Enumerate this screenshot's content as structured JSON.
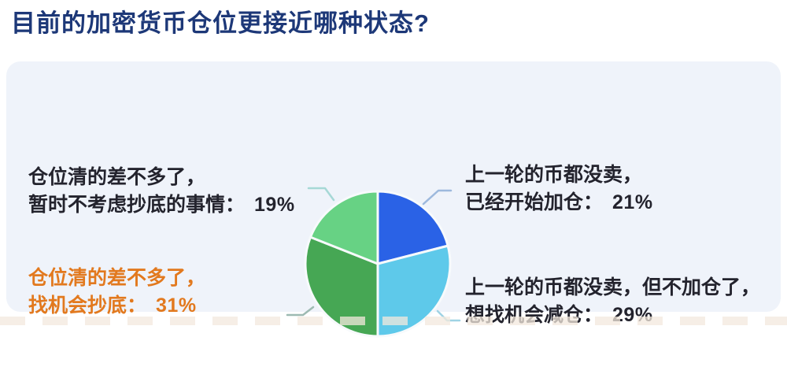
{
  "header": {
    "title": "目前的加密货币仓位更接近哪种状态?"
  },
  "chart_data": {
    "type": "pie",
    "title": "目前的加密货币仓位更接近哪种状态?",
    "start_angle_deg": 0,
    "direction": "clockwise",
    "donut": false,
    "legend_position": "none",
    "slice_gap_color": "#f7fafc",
    "slices": [
      {
        "label": "上一轮的币都没卖，已经开始加仓",
        "value_pct": 21,
        "color": "#2a62e6"
      },
      {
        "label": "上一轮的币都没卖，但不加仓了，想找机会减仓",
        "value_pct": 29,
        "color": "#5ec9ea"
      },
      {
        "label": "仓位清的差不多了，找机会抄底",
        "value_pct": 31,
        "color": "#46a754"
      },
      {
        "label": "仓位清的差不多了，暂时不考虑抄底的事情",
        "value_pct": 19,
        "color": "#67d284"
      }
    ]
  },
  "callouts": {
    "top_left": {
      "line1": "仓位清的差不多了，",
      "line2": "暂时不考虑抄底的事情：",
      "value": "19%"
    },
    "bottom_left": {
      "line1": "仓位清的差不多了，",
      "line2": "找机会抄底：",
      "value": "31%"
    },
    "top_right": {
      "line1": "上一轮的币都没卖，",
      "line2": "已经开始加仓：",
      "value": "21%"
    },
    "bottom_right": {
      "line1": "上一轮的币都没卖，但不加仓了，",
      "line2": "想找机会减仓：",
      "value": "29%"
    }
  },
  "colors": {
    "page_bg": "#ffffff",
    "card_bg": "#eff3fa",
    "title": "#1d3878",
    "text": "#23232d",
    "accent_orange": "#e2791e",
    "leader_tl": "#a6d8d6",
    "leader_tr": "#9db9dd",
    "leader_br": "#9fd3e4",
    "leader_bl": "#9dbab2"
  }
}
